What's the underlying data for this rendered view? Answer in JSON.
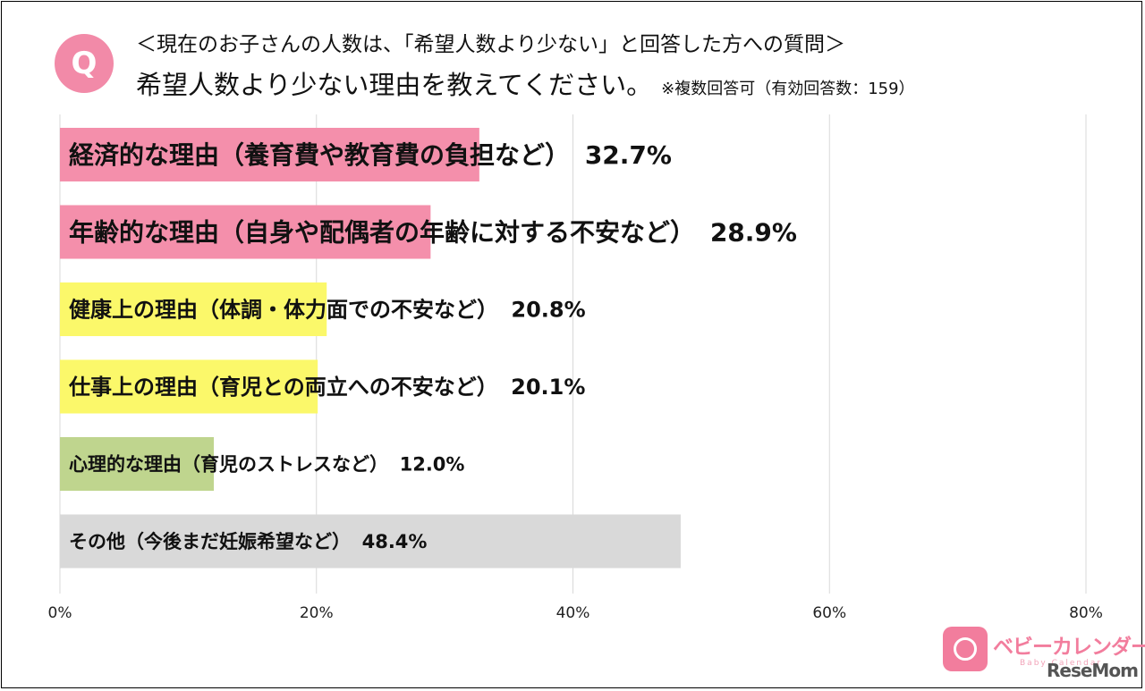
{
  "header": {
    "badge": "Q",
    "subtitle": "＜現在のお子さんの人数は、「希望人数より少ない」と回答した方への質問＞",
    "title": "希望人数より少ない理由を教えてください。",
    "note": "※複数回答可（有効回答数：159）"
  },
  "chart_data": {
    "type": "bar",
    "orientation": "horizontal",
    "categories": [
      "経済的な理由（養育費や教育費の負担など）",
      "年齢的な理由（自身や配偶者の年齢に対する不安など）",
      "健康上の理由（体調・体力面での不安など）",
      "仕事上の理由（育児との両立への不安など）",
      "心理的な理由（育児のストレスなど）",
      "その他（今後まだ妊娠希望など）"
    ],
    "values": [
      32.7,
      28.9,
      20.8,
      20.1,
      12.0,
      48.4
    ],
    "value_labels": [
      "32.7%",
      "28.9%",
      "20.8%",
      "20.1%",
      "12.0%",
      "48.4%"
    ],
    "colors": [
      "#f48fab",
      "#f48fab",
      "#fbf86a",
      "#fbf86a",
      "#bfd58e",
      "#d9d9d9"
    ],
    "xlim": [
      0,
      80
    ],
    "xticks": [
      0,
      20,
      40,
      60,
      80
    ],
    "xtick_labels": [
      "0%",
      "20%",
      "40%",
      "60%",
      "80%"
    ],
    "grid": true
  },
  "branding": {
    "name": "ベビーカレンダー",
    "sub": "Baby Calendar",
    "site": "ReseMom"
  }
}
